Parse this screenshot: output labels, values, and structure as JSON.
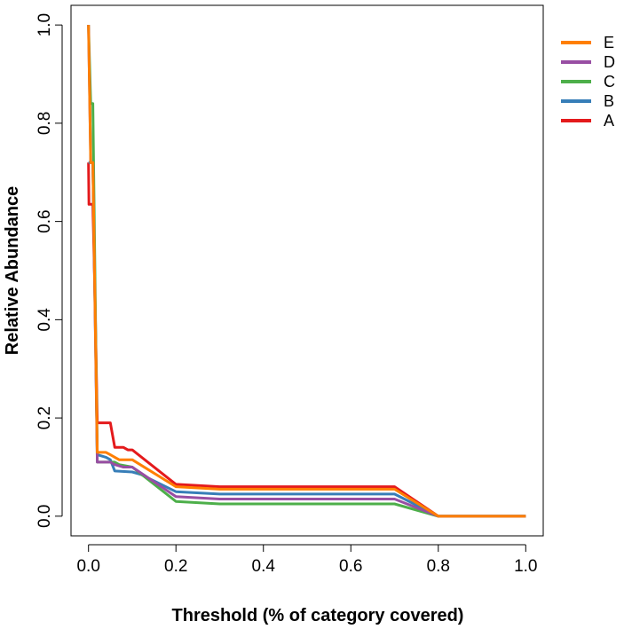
{
  "chart_data": {
    "type": "line",
    "title": "",
    "xlabel": "Threshold (% of category covered)",
    "ylabel": "Relative Abundance",
    "xlim": [
      -0.04,
      1.04
    ],
    "ylim": [
      -0.04,
      1.04
    ],
    "x_ticks": [
      0.0,
      0.2,
      0.4,
      0.6,
      0.8,
      1.0
    ],
    "y_ticks": [
      0.0,
      0.2,
      0.4,
      0.6,
      0.8,
      1.0
    ],
    "x_tick_labels": [
      "0.0",
      "0.2",
      "0.4",
      "0.6",
      "0.8",
      "1.0"
    ],
    "y_tick_labels": [
      "0.0",
      "0.2",
      "0.4",
      "0.6",
      "0.8",
      "1.0"
    ],
    "grid": false,
    "legend_position": "top-right",
    "legend_order": [
      "E",
      "D",
      "C",
      "B",
      "A"
    ],
    "series": [
      {
        "name": "A",
        "color": "#e41a1c",
        "points": [
          [
            0,
            0.72
          ],
          [
            0.001,
            0.635
          ],
          [
            0.01,
            0.635
          ],
          [
            0.015,
            0.44
          ],
          [
            0.02,
            0.19
          ],
          [
            0.05,
            0.19
          ],
          [
            0.06,
            0.14
          ],
          [
            0.08,
            0.14
          ],
          [
            0.09,
            0.135
          ],
          [
            0.1,
            0.135
          ],
          [
            0.2,
            0.065
          ],
          [
            0.3,
            0.06
          ],
          [
            0.7,
            0.06
          ],
          [
            0.8,
            0.0
          ],
          [
            1.0,
            0.0
          ]
        ]
      },
      {
        "name": "B",
        "color": "#377eb8",
        "points": [
          [
            0,
            0.72
          ],
          [
            0.005,
            0.72
          ],
          [
            0.01,
            0.72
          ],
          [
            0.02,
            0.125
          ],
          [
            0.04,
            0.12
          ],
          [
            0.05,
            0.115
          ],
          [
            0.06,
            0.092
          ],
          [
            0.1,
            0.09
          ],
          [
            0.12,
            0.085
          ],
          [
            0.2,
            0.05
          ],
          [
            0.3,
            0.045
          ],
          [
            0.7,
            0.045
          ],
          [
            0.8,
            0.0
          ],
          [
            1.0,
            0.0
          ]
        ]
      },
      {
        "name": "C",
        "color": "#4daf4a",
        "points": [
          [
            0,
            1.0
          ],
          [
            0.005,
            0.84
          ],
          [
            0.01,
            0.84
          ],
          [
            0.02,
            0.11
          ],
          [
            0.06,
            0.11
          ],
          [
            0.07,
            0.105
          ],
          [
            0.1,
            0.1
          ],
          [
            0.2,
            0.03
          ],
          [
            0.3,
            0.025
          ],
          [
            0.7,
            0.025
          ],
          [
            0.8,
            0.0
          ],
          [
            1.0,
            0.0
          ]
        ]
      },
      {
        "name": "D",
        "color": "#984ea3",
        "points": [
          [
            0,
            1.0
          ],
          [
            0.005,
            0.72
          ],
          [
            0.01,
            0.72
          ],
          [
            0.02,
            0.11
          ],
          [
            0.05,
            0.11
          ],
          [
            0.06,
            0.105
          ],
          [
            0.08,
            0.1
          ],
          [
            0.1,
            0.1
          ],
          [
            0.2,
            0.04
          ],
          [
            0.3,
            0.035
          ],
          [
            0.7,
            0.035
          ],
          [
            0.8,
            0.0
          ],
          [
            1.0,
            0.0
          ]
        ]
      },
      {
        "name": "E",
        "color": "#ff7f00",
        "points": [
          [
            0,
            1.0
          ],
          [
            0.005,
            0.72
          ],
          [
            0.01,
            0.72
          ],
          [
            0.02,
            0.13
          ],
          [
            0.04,
            0.13
          ],
          [
            0.05,
            0.125
          ],
          [
            0.07,
            0.115
          ],
          [
            0.1,
            0.115
          ],
          [
            0.2,
            0.06
          ],
          [
            0.3,
            0.055
          ],
          [
            0.7,
            0.055
          ],
          [
            0.8,
            0.0
          ],
          [
            1.0,
            0.0
          ]
        ]
      }
    ]
  }
}
